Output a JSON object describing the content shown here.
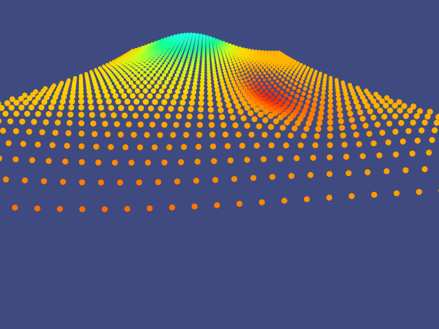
{
  "scene": {
    "description_visible_text": "",
    "background_color": "#3f4a80",
    "palette": {
      "low": "#ff1a00",
      "mid_low": "#ff8c00",
      "mid": "#ffd400",
      "mid_high": "#c8ff1a",
      "high": "#14ff8c",
      "peak": "#1affd9"
    }
  }
}
